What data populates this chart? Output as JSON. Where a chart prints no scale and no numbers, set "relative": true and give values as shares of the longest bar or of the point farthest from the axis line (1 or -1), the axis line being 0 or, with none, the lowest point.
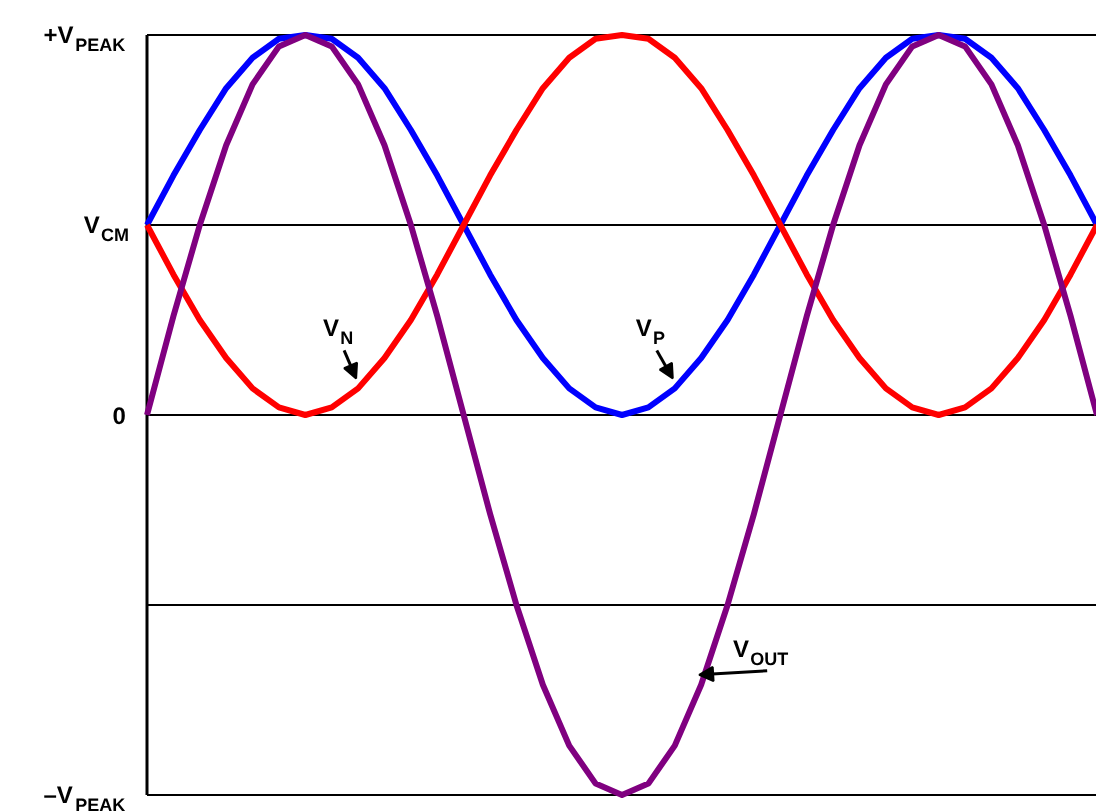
{
  "chart_data": {
    "type": "line",
    "relative": true,
    "categories": [
      null,
      null,
      null,
      null,
      null,
      null,
      null,
      null,
      null,
      null,
      null,
      null,
      null,
      null,
      null,
      null,
      null,
      null,
      null,
      null,
      null,
      null,
      null,
      null,
      null,
      null,
      null,
      null,
      null,
      null,
      null,
      null,
      null,
      null,
      null,
      null,
      null
    ],
    "series": [
      {
        "name": "V$_{P}$",
        "color": "#0000ff",
        "values": [
          0.5,
          0.63,
          0.75,
          0.86,
          0.94,
          0.99,
          1,
          0.99,
          0.94,
          0.86,
          0.75,
          0.63,
          0.5,
          0.37,
          0.25,
          0.15,
          0.07,
          0.02,
          0,
          0.02,
          0.07,
          0.15,
          0.25,
          0.37,
          0.5,
          0.63,
          0.75,
          0.86,
          0.94,
          0.99,
          1,
          0.99,
          0.94,
          0.86,
          0.75,
          0.63,
          0.5
        ]
      },
      {
        "name": "V$_{N}$",
        "color": "#ff0000",
        "values": [
          0.5,
          0.37,
          0.25,
          0.15,
          0.07,
          0.02,
          0,
          0.02,
          0.07,
          0.15,
          0.25,
          0.37,
          0.5,
          0.63,
          0.75,
          0.86,
          0.94,
          0.99,
          1,
          0.99,
          0.94,
          0.86,
          0.75,
          0.63,
          0.5,
          0.37,
          0.25,
          0.15,
          0.07,
          0.02,
          0,
          0.02,
          0.07,
          0.15,
          0.25,
          0.37,
          0.5
        ]
      },
      {
        "name": "V$_{OUT}$",
        "color": "#800080",
        "values": [
          0,
          0.26,
          0.5,
          0.71,
          0.87,
          0.97,
          1,
          0.97,
          0.87,
          0.71,
          0.5,
          0.26,
          0,
          -0.26,
          -0.5,
          -0.71,
          -0.87,
          -0.97,
          -1,
          -0.97,
          -0.87,
          -0.71,
          -0.5,
          -0.26,
          0,
          0.26,
          0.5,
          0.71,
          0.87,
          0.97,
          1,
          0.97,
          0.87,
          0.71,
          0.5,
          0.26,
          0
        ]
      }
    ],
    "ref_lines": [
      {
        "axis": "y",
        "value": 1,
        "label": "+V$_{PEAK}$"
      },
      {
        "axis": "y",
        "value": 0.5,
        "label": "V$_{CM}$"
      },
      {
        "axis": "y",
        "value": 0,
        "label": "0"
      },
      {
        "axis": "y",
        "value": -0.5,
        "label": null
      },
      {
        "axis": "y",
        "value": -1,
        "label": "–V$_{PEAK}$"
      }
    ],
    "legend": false,
    "marker": "none",
    "line_style": "solid"
  }
}
